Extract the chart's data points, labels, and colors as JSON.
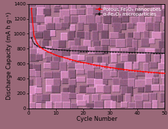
{
  "xlabel": "Cycle Number",
  "ylabel": "Discharge Capacity (mA h g⁻¹)",
  "xlim": [
    0,
    50
  ],
  "ylim": [
    0,
    1400
  ],
  "yticks": [
    0,
    200,
    400,
    600,
    800,
    1000,
    1200,
    1400
  ],
  "xticks": [
    0,
    10,
    20,
    30,
    40,
    50
  ],
  "red_line_label": "Porous Fe₂O₃ nanocubes",
  "black_line_label": "α-Fe₂O₃ microparticles",
  "red_x": [
    1,
    2,
    3,
    4,
    5,
    6,
    7,
    8,
    9,
    10,
    11,
    12,
    13,
    14,
    15,
    16,
    17,
    18,
    19,
    20,
    21,
    22,
    23,
    24,
    25,
    26,
    27,
    28,
    29,
    30,
    31,
    32,
    33,
    34,
    35,
    36,
    37,
    38,
    39,
    40,
    41,
    42,
    43,
    44,
    45,
    46,
    47,
    48,
    49,
    50
  ],
  "red_y": [
    1340,
    970,
    880,
    830,
    800,
    780,
    760,
    745,
    730,
    715,
    700,
    690,
    680,
    670,
    660,
    650,
    640,
    630,
    622,
    615,
    608,
    600,
    592,
    585,
    578,
    572,
    566,
    560,
    554,
    548,
    542,
    537,
    532,
    527,
    522,
    517,
    513,
    509,
    505,
    501,
    497,
    493,
    490,
    487,
    484,
    481,
    478,
    475,
    472,
    469
  ],
  "black_x": [
    1,
    2,
    3,
    4,
    5,
    6,
    7,
    8,
    9,
    10,
    11,
    12,
    13,
    14,
    15,
    16,
    17,
    18,
    19,
    20,
    21,
    22,
    23,
    24,
    25,
    26,
    27,
    28,
    29,
    30,
    31,
    32,
    33,
    34,
    35,
    36,
    37,
    38,
    39,
    40,
    41,
    42,
    43,
    44,
    45,
    46,
    47,
    48,
    49,
    50
  ],
  "black_y": [
    950,
    870,
    840,
    825,
    815,
    808,
    802,
    797,
    793,
    789,
    786,
    783,
    780,
    778,
    776,
    774,
    772,
    771,
    770,
    769,
    768,
    767,
    766,
    765,
    764,
    763,
    762,
    761,
    760,
    759,
    758,
    757,
    756,
    755,
    754,
    753,
    752,
    751,
    750,
    749,
    748,
    747,
    746,
    745,
    744,
    743,
    742,
    741,
    740,
    739
  ],
  "font_size_label": 6,
  "font_size_tick": 5,
  "font_size_legend": 5,
  "line_color_red": "#ff0000",
  "line_color_black": "#111111",
  "marker_size": 1.2,
  "sem_base_r": 0.68,
  "sem_base_g": 0.47,
  "sem_base_b": 0.57,
  "fig_bg": "#9a6878"
}
